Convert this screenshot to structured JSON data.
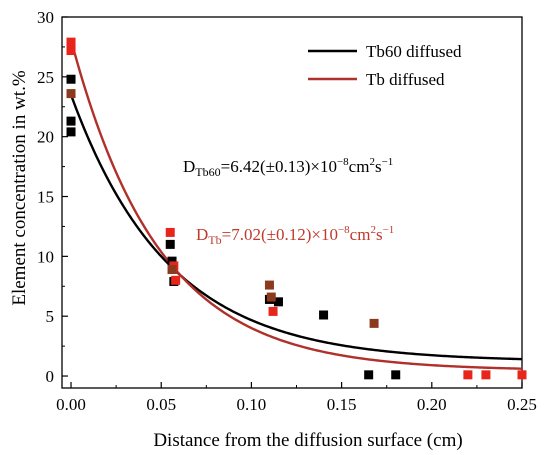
{
  "chart_data": {
    "type": "scatter",
    "title": "",
    "xlabel": "Distance from the diffusion surface (cm)",
    "ylabel": "Element concentration in wt.%",
    "xlim": [
      -0.005,
      0.25
    ],
    "ylim": [
      -1,
      30
    ],
    "x_ticks": [
      0.0,
      0.05,
      0.1,
      0.15,
      0.2,
      0.25
    ],
    "x_tick_labels": [
      "0.00",
      "0.05",
      "0.10",
      "0.15",
      "0.20",
      "0.25"
    ],
    "y_ticks": [
      0,
      5,
      10,
      15,
      20,
      25,
      30
    ],
    "y_tick_labels": [
      "0",
      "5",
      "10",
      "15",
      "20",
      "25",
      "30"
    ],
    "grid": false,
    "legend_position": "top-right",
    "series": [
      {
        "name": "Tb60 diffused",
        "kind": "line",
        "color": "#000000",
        "fit": {
          "c0": 23.5,
          "bg": 1.2,
          "k": 18.6
        }
      },
      {
        "name": "Tb diffused",
        "kind": "line",
        "color": "#b0302a",
        "fit": {
          "c0": 28.1,
          "bg": 0.45,
          "k": 20.5
        }
      },
      {
        "kind": "points",
        "color": "#000000",
        "x": [
          0.0,
          0.0,
          0.0,
          0.0,
          0.055,
          0.056,
          0.057,
          0.11,
          0.115,
          0.14,
          0.165,
          0.18
        ],
        "y": [
          24.8,
          21.3,
          20.4,
          27.5,
          11.0,
          9.6,
          7.9,
          6.4,
          6.2,
          5.1,
          0.1,
          0.1
        ]
      },
      {
        "kind": "points",
        "color": "#e8251b",
        "x": [
          0.0,
          0.0,
          0.055,
          0.057,
          0.058,
          0.112,
          0.22,
          0.23,
          0.25
        ],
        "y": [
          27.9,
          27.2,
          12.0,
          9.2,
          8.0,
          5.4,
          0.1,
          0.1,
          0.1
        ]
      },
      {
        "kind": "points",
        "color": "#8b3a1e",
        "x": [
          0.0,
          0.056,
          0.11,
          0.111,
          0.168
        ],
        "y": [
          23.6,
          8.9,
          7.6,
          6.6,
          4.4
        ]
      }
    ],
    "annotations": [
      {
        "id": "tb60",
        "base": "D",
        "sub": "Tb60",
        "rest": "=6.42(±0.13)×10",
        "exp1": "−8",
        "unit": "cm",
        "exp2": "2",
        "unit2": "s",
        "exp3": "−1",
        "color": "#000000"
      },
      {
        "id": "tb",
        "base": "D",
        "sub": "Tb",
        "rest": "=7.02(±0.12)×10",
        "exp1": "−8",
        "unit": "cm",
        "exp2": "2",
        "unit2": "s",
        "exp3": "−1",
        "color": "#c0392b"
      }
    ]
  }
}
